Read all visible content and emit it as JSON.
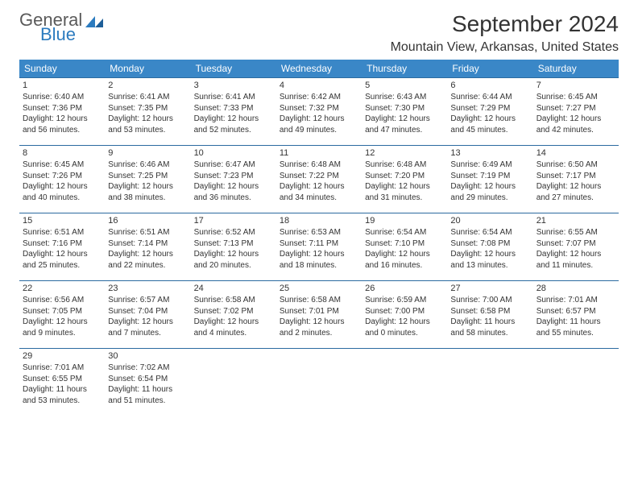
{
  "logo": {
    "word1": "General",
    "word2": "Blue"
  },
  "title": "September 2024",
  "location": "Mountain View, Arkansas, United States",
  "colors": {
    "header_bg": "#3a87c7",
    "border": "#2b6aa0",
    "logo_blue": "#2b7bbf"
  },
  "weekdays": [
    "Sunday",
    "Monday",
    "Tuesday",
    "Wednesday",
    "Thursday",
    "Friday",
    "Saturday"
  ],
  "days": [
    {
      "n": "1",
      "sr": "Sunrise: 6:40 AM",
      "ss": "Sunset: 7:36 PM",
      "d1": "Daylight: 12 hours",
      "d2": "and 56 minutes."
    },
    {
      "n": "2",
      "sr": "Sunrise: 6:41 AM",
      "ss": "Sunset: 7:35 PM",
      "d1": "Daylight: 12 hours",
      "d2": "and 53 minutes."
    },
    {
      "n": "3",
      "sr": "Sunrise: 6:41 AM",
      "ss": "Sunset: 7:33 PM",
      "d1": "Daylight: 12 hours",
      "d2": "and 52 minutes."
    },
    {
      "n": "4",
      "sr": "Sunrise: 6:42 AM",
      "ss": "Sunset: 7:32 PM",
      "d1": "Daylight: 12 hours",
      "d2": "and 49 minutes."
    },
    {
      "n": "5",
      "sr": "Sunrise: 6:43 AM",
      "ss": "Sunset: 7:30 PM",
      "d1": "Daylight: 12 hours",
      "d2": "and 47 minutes."
    },
    {
      "n": "6",
      "sr": "Sunrise: 6:44 AM",
      "ss": "Sunset: 7:29 PM",
      "d1": "Daylight: 12 hours",
      "d2": "and 45 minutes."
    },
    {
      "n": "7",
      "sr": "Sunrise: 6:45 AM",
      "ss": "Sunset: 7:27 PM",
      "d1": "Daylight: 12 hours",
      "d2": "and 42 minutes."
    },
    {
      "n": "8",
      "sr": "Sunrise: 6:45 AM",
      "ss": "Sunset: 7:26 PM",
      "d1": "Daylight: 12 hours",
      "d2": "and 40 minutes."
    },
    {
      "n": "9",
      "sr": "Sunrise: 6:46 AM",
      "ss": "Sunset: 7:25 PM",
      "d1": "Daylight: 12 hours",
      "d2": "and 38 minutes."
    },
    {
      "n": "10",
      "sr": "Sunrise: 6:47 AM",
      "ss": "Sunset: 7:23 PM",
      "d1": "Daylight: 12 hours",
      "d2": "and 36 minutes."
    },
    {
      "n": "11",
      "sr": "Sunrise: 6:48 AM",
      "ss": "Sunset: 7:22 PM",
      "d1": "Daylight: 12 hours",
      "d2": "and 34 minutes."
    },
    {
      "n": "12",
      "sr": "Sunrise: 6:48 AM",
      "ss": "Sunset: 7:20 PM",
      "d1": "Daylight: 12 hours",
      "d2": "and 31 minutes."
    },
    {
      "n": "13",
      "sr": "Sunrise: 6:49 AM",
      "ss": "Sunset: 7:19 PM",
      "d1": "Daylight: 12 hours",
      "d2": "and 29 minutes."
    },
    {
      "n": "14",
      "sr": "Sunrise: 6:50 AM",
      "ss": "Sunset: 7:17 PM",
      "d1": "Daylight: 12 hours",
      "d2": "and 27 minutes."
    },
    {
      "n": "15",
      "sr": "Sunrise: 6:51 AM",
      "ss": "Sunset: 7:16 PM",
      "d1": "Daylight: 12 hours",
      "d2": "and 25 minutes."
    },
    {
      "n": "16",
      "sr": "Sunrise: 6:51 AM",
      "ss": "Sunset: 7:14 PM",
      "d1": "Daylight: 12 hours",
      "d2": "and 22 minutes."
    },
    {
      "n": "17",
      "sr": "Sunrise: 6:52 AM",
      "ss": "Sunset: 7:13 PM",
      "d1": "Daylight: 12 hours",
      "d2": "and 20 minutes."
    },
    {
      "n": "18",
      "sr": "Sunrise: 6:53 AM",
      "ss": "Sunset: 7:11 PM",
      "d1": "Daylight: 12 hours",
      "d2": "and 18 minutes."
    },
    {
      "n": "19",
      "sr": "Sunrise: 6:54 AM",
      "ss": "Sunset: 7:10 PM",
      "d1": "Daylight: 12 hours",
      "d2": "and 16 minutes."
    },
    {
      "n": "20",
      "sr": "Sunrise: 6:54 AM",
      "ss": "Sunset: 7:08 PM",
      "d1": "Daylight: 12 hours",
      "d2": "and 13 minutes."
    },
    {
      "n": "21",
      "sr": "Sunrise: 6:55 AM",
      "ss": "Sunset: 7:07 PM",
      "d1": "Daylight: 12 hours",
      "d2": "and 11 minutes."
    },
    {
      "n": "22",
      "sr": "Sunrise: 6:56 AM",
      "ss": "Sunset: 7:05 PM",
      "d1": "Daylight: 12 hours",
      "d2": "and 9 minutes."
    },
    {
      "n": "23",
      "sr": "Sunrise: 6:57 AM",
      "ss": "Sunset: 7:04 PM",
      "d1": "Daylight: 12 hours",
      "d2": "and 7 minutes."
    },
    {
      "n": "24",
      "sr": "Sunrise: 6:58 AM",
      "ss": "Sunset: 7:02 PM",
      "d1": "Daylight: 12 hours",
      "d2": "and 4 minutes."
    },
    {
      "n": "25",
      "sr": "Sunrise: 6:58 AM",
      "ss": "Sunset: 7:01 PM",
      "d1": "Daylight: 12 hours",
      "d2": "and 2 minutes."
    },
    {
      "n": "26",
      "sr": "Sunrise: 6:59 AM",
      "ss": "Sunset: 7:00 PM",
      "d1": "Daylight: 12 hours",
      "d2": "and 0 minutes."
    },
    {
      "n": "27",
      "sr": "Sunrise: 7:00 AM",
      "ss": "Sunset: 6:58 PM",
      "d1": "Daylight: 11 hours",
      "d2": "and 58 minutes."
    },
    {
      "n": "28",
      "sr": "Sunrise: 7:01 AM",
      "ss": "Sunset: 6:57 PM",
      "d1": "Daylight: 11 hours",
      "d2": "and 55 minutes."
    },
    {
      "n": "29",
      "sr": "Sunrise: 7:01 AM",
      "ss": "Sunset: 6:55 PM",
      "d1": "Daylight: 11 hours",
      "d2": "and 53 minutes."
    },
    {
      "n": "30",
      "sr": "Sunrise: 7:02 AM",
      "ss": "Sunset: 6:54 PM",
      "d1": "Daylight: 11 hours",
      "d2": "and 51 minutes."
    }
  ]
}
